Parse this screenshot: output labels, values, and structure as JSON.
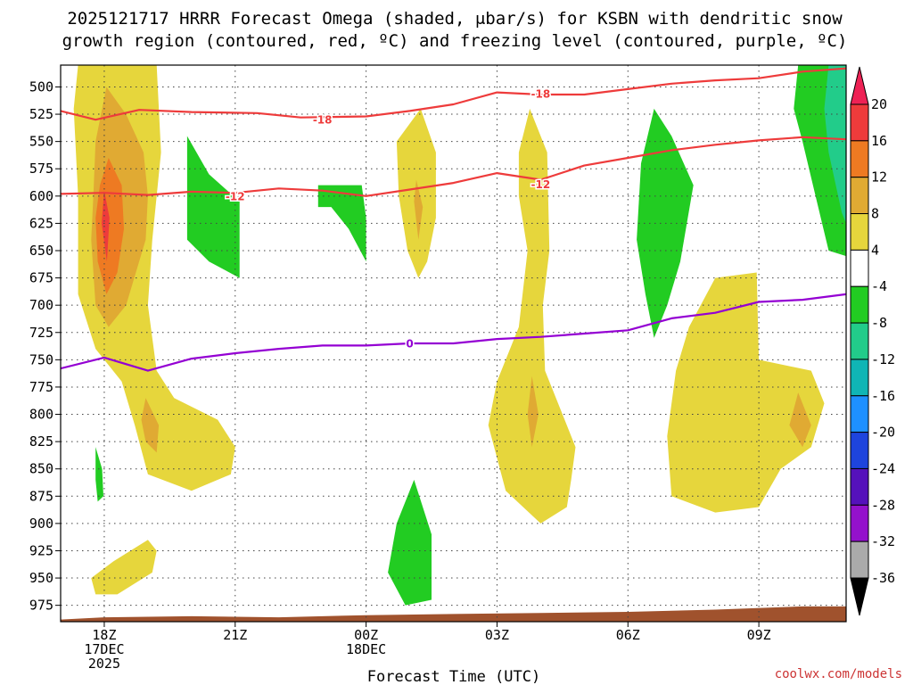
{
  "chart_data": {
    "type": "heatmap",
    "title_line1": "2025121717 HRRR Forecast Omega (shaded, μbar/s) for KSBN with dendritic snow",
    "title_line2": "growth region (contoured, red, ºC) and freezing level (contoured, purple, ºC)",
    "xlabel": "Forecast Time (UTC)",
    "credit": "coolwx.com/models",
    "x_range_hours": [
      -1,
      17
    ],
    "y_range_mb": [
      480,
      990
    ],
    "y_ticks": [
      {
        "label": "500",
        "value": 500
      },
      {
        "label": "525",
        "value": 525
      },
      {
        "label": "550",
        "value": 550
      },
      {
        "label": "575",
        "value": 575
      },
      {
        "label": "600",
        "value": 600
      },
      {
        "label": "625",
        "value": 625
      },
      {
        "label": "650",
        "value": 650
      },
      {
        "label": "675",
        "value": 675
      },
      {
        "label": "700",
        "value": 700
      },
      {
        "label": "725",
        "value": 725
      },
      {
        "label": "750",
        "value": 750
      },
      {
        "label": "775",
        "value": 775
      },
      {
        "label": "800",
        "value": 800
      },
      {
        "label": "825",
        "value": 825
      },
      {
        "label": "850",
        "value": 850
      },
      {
        "label": "875",
        "value": 875
      },
      {
        "label": "900",
        "value": 900
      },
      {
        "label": "925",
        "value": 925
      },
      {
        "label": "950",
        "value": 950
      },
      {
        "label": "975",
        "value": 975
      }
    ],
    "x_ticks": [
      {
        "hour": 0,
        "lines": [
          "18Z",
          "17DEC",
          "2025"
        ]
      },
      {
        "hour": 3,
        "lines": [
          "21Z"
        ]
      },
      {
        "hour": 6,
        "lines": [
          "00Z",
          "18DEC"
        ]
      },
      {
        "hour": 9,
        "lines": [
          "03Z"
        ]
      },
      {
        "hour": 12,
        "lines": [
          "06Z"
        ]
      },
      {
        "hour": 15,
        "lines": [
          "09Z"
        ]
      }
    ],
    "colorbar": {
      "labels": [
        "20",
        "16",
        "12",
        "8",
        "4",
        "-4",
        "-8",
        "-12",
        "-16",
        "-20",
        "-24",
        "-28",
        "-32",
        "-36"
      ],
      "colors": [
        "#ee2255",
        "#ee3b3b",
        "#ee7a22",
        "#e0aa33",
        "#e6d63c",
        "#ffffff",
        "#22cc22",
        "#22cc8a",
        "#10b5b5",
        "#1e90ff",
        "#1e44dd",
        "#5511bb",
        "#9411cc",
        "#aaaaaa",
        "#000000"
      ]
    },
    "omega_regions": [
      {
        "color": "#e6d63c",
        "pts": [
          [
            -0.6,
            480
          ],
          [
            0.2,
            480
          ],
          [
            1.2,
            480
          ],
          [
            1.3,
            560
          ],
          [
            1.1,
            640
          ],
          [
            1.0,
            700
          ],
          [
            1.2,
            760
          ],
          [
            1.6,
            785
          ],
          [
            2.6,
            805
          ],
          [
            3.0,
            830
          ],
          [
            2.9,
            855
          ],
          [
            2.0,
            870
          ],
          [
            1.0,
            855
          ],
          [
            0.7,
            810
          ],
          [
            0.4,
            770
          ],
          [
            -0.2,
            740
          ],
          [
            -0.6,
            690
          ],
          [
            -0.6,
            600
          ],
          [
            -0.7,
            520
          ]
        ]
      },
      {
        "color": "#e0aa33",
        "pts": [
          [
            0.05,
            500
          ],
          [
            0.5,
            525
          ],
          [
            0.9,
            560
          ],
          [
            1.0,
            600
          ],
          [
            0.95,
            640
          ],
          [
            0.5,
            700
          ],
          [
            0.1,
            720
          ],
          [
            -0.2,
            700
          ],
          [
            -0.3,
            640
          ],
          [
            -0.25,
            600
          ],
          [
            -0.2,
            550
          ]
        ]
      },
      {
        "color": "#ee7a22",
        "pts": [
          [
            0.1,
            565
          ],
          [
            0.4,
            590
          ],
          [
            0.45,
            630
          ],
          [
            0.3,
            670
          ],
          [
            0.05,
            690
          ],
          [
            -0.15,
            660
          ],
          [
            -0.2,
            620
          ],
          [
            -0.1,
            590
          ]
        ]
      },
      {
        "color": "#ee3b3b",
        "pts": [
          [
            0.0,
            595
          ],
          [
            0.12,
            620
          ],
          [
            0.06,
            660
          ],
          [
            -0.06,
            625
          ]
        ]
      },
      {
        "color": "#e0aa33",
        "pts": [
          [
            0.95,
            785
          ],
          [
            1.25,
            810
          ],
          [
            1.2,
            835
          ],
          [
            0.95,
            825
          ],
          [
            0.85,
            805
          ]
        ]
      },
      {
        "color": "#e6d63c",
        "pts": [
          [
            -0.3,
            950
          ],
          [
            0.2,
            935
          ],
          [
            1.0,
            915
          ],
          [
            1.2,
            925
          ],
          [
            1.1,
            945
          ],
          [
            0.3,
            965
          ],
          [
            -0.2,
            965
          ]
        ]
      },
      {
        "color": "#22cc22",
        "pts": [
          [
            -0.2,
            830
          ],
          [
            -0.05,
            850
          ],
          [
            -0.02,
            875
          ],
          [
            -0.15,
            880
          ],
          [
            -0.2,
            860
          ]
        ]
      },
      {
        "color": "#22cc22",
        "pts": [
          [
            1.9,
            545
          ],
          [
            2.4,
            580
          ],
          [
            3.1,
            605
          ],
          [
            3.1,
            675
          ],
          [
            2.4,
            660
          ],
          [
            1.9,
            640
          ]
        ]
      },
      {
        "color": "#22cc22",
        "pts": [
          [
            4.9,
            590
          ],
          [
            5.9,
            590
          ],
          [
            6.0,
            620
          ],
          [
            6.0,
            660
          ],
          [
            5.6,
            630
          ],
          [
            5.2,
            610
          ],
          [
            4.9,
            610
          ]
        ]
      },
      {
        "color": "#e6d63c",
        "pts": [
          [
            7.25,
            520
          ],
          [
            7.6,
            560
          ],
          [
            7.6,
            620
          ],
          [
            7.4,
            660
          ],
          [
            7.2,
            675
          ],
          [
            6.95,
            650
          ],
          [
            6.75,
            600
          ],
          [
            6.7,
            550
          ]
        ]
      },
      {
        "color": "#e0aa33",
        "pts": [
          [
            7.15,
            585
          ],
          [
            7.3,
            610
          ],
          [
            7.2,
            640
          ],
          [
            7.1,
            605
          ]
        ]
      },
      {
        "color": "#22cc22",
        "pts": [
          [
            7.1,
            860
          ],
          [
            7.5,
            910
          ],
          [
            7.5,
            970
          ],
          [
            6.9,
            975
          ],
          [
            6.5,
            945
          ],
          [
            6.7,
            900
          ]
        ]
      },
      {
        "color": "#e6d63c",
        "pts": [
          [
            9.75,
            520
          ],
          [
            10.15,
            560
          ],
          [
            10.2,
            650
          ],
          [
            10.05,
            700
          ],
          [
            10.1,
            760
          ],
          [
            10.8,
            830
          ],
          [
            10.7,
            860
          ],
          [
            10.6,
            885
          ],
          [
            10.0,
            900
          ],
          [
            9.2,
            870
          ],
          [
            8.8,
            810
          ],
          [
            9.0,
            770
          ],
          [
            9.5,
            720
          ],
          [
            9.7,
            650
          ],
          [
            9.5,
            600
          ],
          [
            9.5,
            560
          ]
        ]
      },
      {
        "color": "#e0aa33",
        "pts": [
          [
            9.8,
            765
          ],
          [
            9.95,
            800
          ],
          [
            9.8,
            830
          ],
          [
            9.7,
            800
          ]
        ]
      },
      {
        "color": "#22cc22",
        "pts": [
          [
            12.6,
            520
          ],
          [
            13.0,
            545
          ],
          [
            13.5,
            590
          ],
          [
            13.2,
            660
          ],
          [
            12.9,
            700
          ],
          [
            12.6,
            730
          ],
          [
            12.4,
            690
          ],
          [
            12.2,
            640
          ],
          [
            12.3,
            570
          ]
        ]
      },
      {
        "color": "#e6d63c",
        "pts": [
          [
            14.0,
            675
          ],
          [
            14.95,
            670
          ],
          [
            15.0,
            750
          ],
          [
            16.2,
            760
          ],
          [
            16.5,
            790
          ],
          [
            16.2,
            830
          ],
          [
            15.5,
            850
          ],
          [
            15.0,
            885
          ],
          [
            14.0,
            890
          ],
          [
            13.0,
            875
          ],
          [
            12.9,
            820
          ],
          [
            13.1,
            760
          ],
          [
            13.4,
            720
          ]
        ]
      },
      {
        "color": "#e0aa33",
        "pts": [
          [
            15.9,
            780
          ],
          [
            16.2,
            810
          ],
          [
            16.0,
            830
          ],
          [
            15.7,
            810
          ]
        ]
      },
      {
        "color": "#22cc22",
        "pts": [
          [
            15.9,
            480
          ],
          [
            17.0,
            480
          ],
          [
            17.0,
            655
          ],
          [
            16.6,
            650
          ],
          [
            16.3,
            600
          ],
          [
            16.0,
            550
          ],
          [
            15.8,
            520
          ]
        ]
      },
      {
        "color": "#22cc8a",
        "pts": [
          [
            16.6,
            480
          ],
          [
            17.0,
            480
          ],
          [
            17.0,
            625
          ],
          [
            16.9,
            615
          ],
          [
            16.6,
            560
          ],
          [
            16.5,
            520
          ]
        ]
      }
    ],
    "dgz_contours": [
      {
        "label": "-18",
        "label_at": [
          5.0,
          530
        ],
        "pts": [
          [
            -1,
            522
          ],
          [
            -0.2,
            530
          ],
          [
            0.8,
            521
          ],
          [
            2,
            523
          ],
          [
            3.5,
            524
          ],
          [
            4.5,
            528
          ],
          [
            6,
            527
          ],
          [
            7,
            522
          ],
          [
            8,
            516
          ],
          [
            9,
            505
          ],
          [
            10,
            507
          ],
          [
            11,
            507
          ],
          [
            12,
            502
          ],
          [
            13,
            497
          ],
          [
            14,
            494
          ],
          [
            15,
            492
          ],
          [
            16,
            486
          ],
          [
            17,
            483
          ]
        ]
      },
      {
        "label": "-18",
        "label_at": [
          10.0,
          506
        ],
        "pts": []
      },
      {
        "label": "-12",
        "label_at": [
          3.0,
          600
        ],
        "pts": [
          [
            -1,
            598
          ],
          [
            0,
            597
          ],
          [
            1,
            599
          ],
          [
            2,
            596
          ],
          [
            3,
            597
          ],
          [
            4,
            593
          ],
          [
            5,
            595
          ],
          [
            6,
            600
          ],
          [
            7,
            594
          ],
          [
            8,
            588
          ],
          [
            9,
            579
          ],
          [
            10,
            585
          ],
          [
            11,
            572
          ],
          [
            12,
            565
          ],
          [
            13,
            558
          ],
          [
            14,
            553
          ],
          [
            15,
            549
          ],
          [
            16,
            546
          ],
          [
            17,
            548
          ]
        ]
      },
      {
        "label": "-12",
        "label_at": [
          10.0,
          589
        ],
        "pts": []
      }
    ],
    "freezing_contour": {
      "label": "0",
      "label_at": [
        7.0,
        735
      ],
      "pts": [
        [
          -1,
          758
        ],
        [
          0,
          748
        ],
        [
          1,
          760
        ],
        [
          2,
          749
        ],
        [
          3,
          744
        ],
        [
          4,
          740
        ],
        [
          5,
          737
        ],
        [
          6,
          737
        ],
        [
          7,
          735
        ],
        [
          8,
          735
        ],
        [
          9,
          731
        ],
        [
          10,
          729
        ],
        [
          11,
          726
        ],
        [
          12,
          723
        ],
        [
          13,
          712
        ],
        [
          14,
          707
        ],
        [
          15,
          697
        ],
        [
          16,
          695
        ],
        [
          17,
          690
        ]
      ]
    },
    "terrain": [
      [
        -1,
        988
      ],
      [
        0,
        986
      ],
      [
        2,
        985
      ],
      [
        4,
        986
      ],
      [
        6,
        984
      ],
      [
        8,
        983
      ],
      [
        10,
        982
      ],
      [
        12,
        981
      ],
      [
        14,
        979
      ],
      [
        16,
        976
      ],
      [
        17,
        976
      ]
    ]
  }
}
